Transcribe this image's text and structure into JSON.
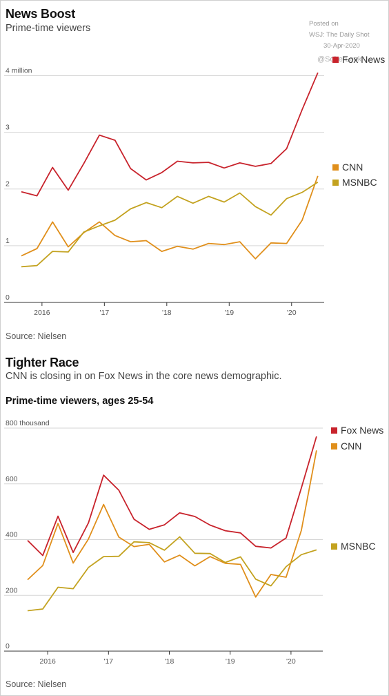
{
  "watermark": {
    "posted_on": "Posted on",
    "source_name": "WSJ: The Daily Shot",
    "date": "30-Apr-2020",
    "handle": "@SoberLook"
  },
  "chart1": {
    "title": "News Boost",
    "subtitle": "Prime-time viewers",
    "source": "Source: Nielsen"
  },
  "chart2": {
    "title": "Tighter Race",
    "subtitle": "CNN is closing in on Fox News in the core news demographic.",
    "subhead": "Prime-time viewers, ages 25-54",
    "source": "Source: Nielsen"
  },
  "colors": {
    "fox": "#c8232c",
    "cnn": "#e08f1b",
    "msnbc": "#c3a21f",
    "grid": "#d6d6d6",
    "axis": "#333333"
  },
  "chart_data": [
    {
      "type": "line",
      "title": "News Boost",
      "subtitle": "Prime-time viewers",
      "xlabel": "",
      "ylabel": "",
      "x": [
        2015.67,
        2015.92,
        2016.17,
        2016.42,
        2016.67,
        2016.92,
        2017.17,
        2017.42,
        2017.67,
        2017.92,
        2018.17,
        2018.42,
        2018.67,
        2018.92,
        2019.17,
        2019.42,
        2019.67,
        2019.92,
        2020.17,
        2020.42
      ],
      "x_ticks": [
        {
          "value": 2016.0,
          "label": "2016"
        },
        {
          "value": 2017.0,
          "label": "'17"
        },
        {
          "value": 2018.0,
          "label": "'18"
        },
        {
          "value": 2019.0,
          "label": "'19"
        },
        {
          "value": 2020.0,
          "label": "'20"
        }
      ],
      "xlim": [
        2015.67,
        2020.5
      ],
      "ylim": [
        0,
        4.2
      ],
      "y_ticks": [
        {
          "value": 0,
          "label": "0"
        },
        {
          "value": 1,
          "label": "1"
        },
        {
          "value": 2,
          "label": "2"
        },
        {
          "value": 3,
          "label": "3"
        },
        {
          "value": 4,
          "label": "4 million"
        }
      ],
      "grid": true,
      "series": [
        {
          "name": "Fox News",
          "color_key": "fox",
          "values": [
            1.95,
            1.88,
            2.38,
            1.98,
            2.45,
            2.95,
            2.86,
            2.36,
            2.16,
            2.29,
            2.49,
            2.46,
            2.47,
            2.37,
            2.46,
            2.4,
            2.45,
            2.71,
            3.4,
            4.05
          ]
        },
        {
          "name": "CNN",
          "color_key": "cnn",
          "values": [
            0.82,
            0.95,
            1.42,
            0.98,
            1.23,
            1.42,
            1.18,
            1.07,
            1.09,
            0.9,
            0.99,
            0.94,
            1.04,
            1.02,
            1.07,
            0.77,
            1.05,
            1.04,
            1.45,
            2.23
          ]
        },
        {
          "name": "MSNBC",
          "color_key": "msnbc",
          "values": [
            0.63,
            0.65,
            0.9,
            0.89,
            1.24,
            1.35,
            1.45,
            1.65,
            1.76,
            1.67,
            1.87,
            1.75,
            1.87,
            1.77,
            1.93,
            1.69,
            1.54,
            1.83,
            1.94,
            2.12
          ]
        }
      ]
    },
    {
      "type": "line",
      "title": "Tighter Race",
      "subtitle": "CNN is closing in on Fox News in the core news demographic.",
      "xlabel": "",
      "ylabel": "Prime-time viewers, ages 25-54",
      "x": [
        2015.67,
        2015.92,
        2016.17,
        2016.42,
        2016.67,
        2016.92,
        2017.17,
        2017.42,
        2017.67,
        2017.92,
        2018.17,
        2018.42,
        2018.67,
        2018.92,
        2019.17,
        2019.42,
        2019.67,
        2019.92,
        2020.17,
        2020.42
      ],
      "x_ticks": [
        {
          "value": 2016.0,
          "label": "2016"
        },
        {
          "value": 2017.0,
          "label": "'17"
        },
        {
          "value": 2018.0,
          "label": "'18"
        },
        {
          "value": 2019.0,
          "label": "'19"
        },
        {
          "value": 2020.0,
          "label": "'20"
        }
      ],
      "xlim": [
        2015.67,
        2020.5
      ],
      "ylim": [
        0,
        800
      ],
      "y_ticks": [
        {
          "value": 0,
          "label": "0"
        },
        {
          "value": 200,
          "label": "200"
        },
        {
          "value": 400,
          "label": "400"
        },
        {
          "value": 600,
          "label": "600"
        },
        {
          "value": 800,
          "label": "800 thousand"
        }
      ],
      "grid": true,
      "series": [
        {
          "name": "Fox News",
          "color_key": "fox",
          "values": [
            397,
            343,
            484,
            354,
            460,
            631,
            577,
            473,
            437,
            453,
            496,
            483,
            452,
            432,
            424,
            376,
            370,
            406,
            585,
            770
          ]
        },
        {
          "name": "CNN",
          "color_key": "cnn",
          "values": [
            256,
            307,
            458,
            316,
            402,
            526,
            409,
            375,
            383,
            320,
            344,
            306,
            339,
            315,
            311,
            194,
            275,
            265,
            433,
            720
          ]
        },
        {
          "name": "MSNBC",
          "color_key": "msnbc",
          "values": [
            145,
            151,
            229,
            224,
            300,
            339,
            340,
            392,
            389,
            362,
            410,
            351,
            350,
            318,
            338,
            258,
            234,
            303,
            346,
            363
          ]
        }
      ]
    }
  ]
}
